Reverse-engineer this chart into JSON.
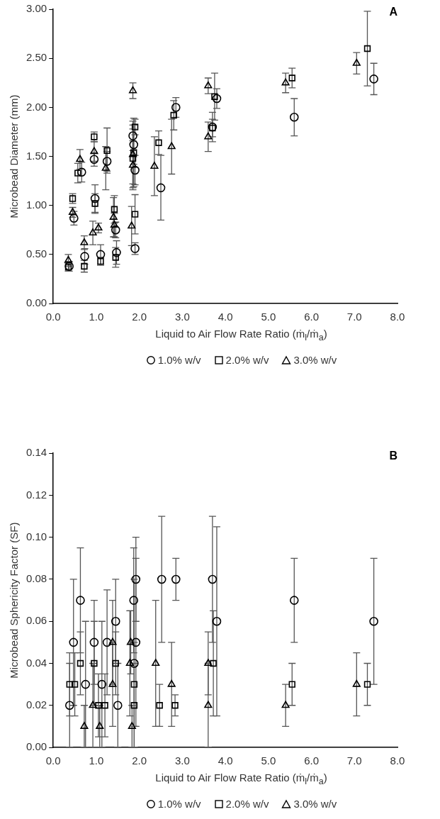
{
  "chart_data": [
    {
      "type": "scatter",
      "title": "A",
      "xlabel": "Liquid to Air Flow Rate Ratio (ṁ$_{l}$/ṁ$_{a}$)",
      "ylabel": "Microbead Diameter (mm)",
      "xlim": [
        0,
        8
      ],
      "xticks": [
        {
          "value": 0,
          "label": "0.0"
        },
        {
          "value": 1,
          "label": "1.0"
        },
        {
          "value": 2,
          "label": "2.0"
        },
        {
          "value": 3,
          "label": "3.0"
        },
        {
          "value": 4,
          "label": "4.0"
        },
        {
          "value": 5,
          "label": "5.0"
        },
        {
          "value": 6,
          "label": "6.0"
        },
        {
          "value": 7,
          "label": "7.0"
        },
        {
          "value": 8,
          "label": "8.0"
        }
      ],
      "ylim": [
        0,
        3
      ],
      "yticks": [
        {
          "value": 0,
          "label": "0.00"
        },
        {
          "value": 0.5,
          "label": "0.50"
        },
        {
          "value": 1,
          "label": "1.00"
        },
        {
          "value": 1.5,
          "label": "1.50"
        },
        {
          "value": 2,
          "label": "2.00"
        },
        {
          "value": 2.5,
          "label": "2.50"
        },
        {
          "value": 3,
          "label": "3.00"
        }
      ],
      "grid": false,
      "legend": "bottom",
      "series": [
        {
          "name": "1.0% w/v",
          "color": "#000000",
          "marker": "circle",
          "x": [
            0.37,
            0.48,
            0.66,
            0.73,
            0.95,
            0.97,
            1.1,
            1.25,
            1.45,
            1.47,
            1.85,
            1.87,
            1.9,
            1.9,
            2.5,
            2.85,
            3.7,
            3.8,
            5.6,
            7.45
          ],
          "values": [
            0.38,
            0.87,
            1.34,
            0.48,
            1.47,
            1.07,
            0.5,
            1.45,
            0.75,
            0.52,
            1.71,
            1.62,
            1.36,
            0.56,
            1.18,
            2,
            1.8,
            2.09,
            1.9,
            2.29
          ],
          "errors": [
            0.05,
            0.07,
            0.1,
            0.08,
            0.07,
            0.14,
            0.1,
            0.1,
            0.08,
            0.12,
            0.15,
            0.2,
            0.15,
            0.06,
            0.33,
            0.1,
            0.15,
            0.1,
            0.19,
            0.16
          ]
        },
        {
          "name": "2.0% w/v",
          "color": "#000000",
          "marker": "square",
          "x": [
            0.35,
            0.45,
            0.57,
            0.72,
            0.95,
            0.97,
            1.1,
            1.25,
            1.42,
            1.45,
            1.85,
            1.87,
            1.9,
            1.9,
            2.45,
            2.8,
            3.7,
            3.75,
            5.55,
            7.3
          ],
          "values": [
            0.37,
            1.07,
            1.33,
            0.38,
            1.7,
            1.02,
            0.43,
            1.56,
            0.96,
            0.47,
            1.48,
            1.54,
            1.8,
            0.91,
            1.64,
            1.92,
            1.79,
            2.11,
            2.3,
            2.6
          ],
          "errors": [
            0.04,
            0.05,
            0.1,
            0.06,
            0.05,
            0.1,
            0.04,
            0.23,
            0.14,
            0.1,
            0.3,
            0.35,
            0.08,
            0.2,
            0.12,
            0.15,
            0.09,
            0.24,
            0.1,
            0.38
          ]
        },
        {
          "name": "3.0% w/v",
          "color": "#000000",
          "marker": "triangle",
          "x": [
            0.35,
            0.45,
            0.62,
            0.72,
            0.92,
            0.95,
            1.05,
            1.22,
            1.4,
            1.42,
            1.82,
            1.85,
            1.85,
            1.85,
            2.35,
            2.75,
            3.6,
            3.6,
            5.4,
            7.05
          ],
          "values": [
            0.44,
            0.93,
            1.47,
            0.62,
            0.72,
            1.55,
            0.77,
            1.38,
            0.88,
            0.8,
            0.79,
            1.41,
            1.52,
            2.17,
            1.4,
            1.6,
            1.7,
            2.22,
            2.25,
            2.45
          ],
          "errors": [
            0.06,
            0.05,
            0.1,
            0.07,
            0.12,
            0.1,
            0.05,
            0.22,
            0.2,
            0.12,
            0.2,
            0.25,
            0.3,
            0.08,
            0.3,
            0.28,
            0.15,
            0.08,
            0.1,
            0.11
          ]
        }
      ]
    },
    {
      "type": "scatter",
      "title": "B",
      "xlabel": "Liquid to Air Flow Rate Ratio (ṁ$_{l}$/ṁ$_{a}$)",
      "ylabel": "Microbead Sphericity Factor (SF)",
      "xlim": [
        0,
        8
      ],
      "xticks": [
        {
          "value": 0,
          "label": "0.0"
        },
        {
          "value": 1,
          "label": "1.0"
        },
        {
          "value": 2,
          "label": "2.0"
        },
        {
          "value": 3,
          "label": "3.0"
        },
        {
          "value": 4,
          "label": "4.0"
        },
        {
          "value": 5,
          "label": "5.0"
        },
        {
          "value": 6,
          "label": "6.0"
        },
        {
          "value": 7,
          "label": "7.0"
        },
        {
          "value": 8,
          "label": "8.0"
        }
      ],
      "ylim": [
        0,
        0.14
      ],
      "yticks": [
        {
          "value": 0,
          "label": "0.00"
        },
        {
          "value": 0.02,
          "label": "0.02"
        },
        {
          "value": 0.04,
          "label": "0.04"
        },
        {
          "value": 0.06,
          "label": "0.06"
        },
        {
          "value": 0.08,
          "label": "0.08"
        },
        {
          "value": 0.1,
          "label": "0.10"
        },
        {
          "value": 0.12,
          "label": "0.12"
        },
        {
          "value": 0.14,
          "label": "0.14"
        }
      ],
      "grid": false,
      "legend": "bottom",
      "series": [
        {
          "name": "1.0% w/v",
          "color": "#000000",
          "marker": "circle",
          "x": [
            0.38,
            0.47,
            0.63,
            0.75,
            0.95,
            1.13,
            1.25,
            1.45,
            1.5,
            1.87,
            1.92,
            1.92,
            1.88,
            2.52,
            2.85,
            3.7,
            3.8,
            5.6,
            7.45
          ],
          "values": [
            0.02,
            0.05,
            0.07,
            0.03,
            0.05,
            0.03,
            0.05,
            0.06,
            0.02,
            0.07,
            0.08,
            0.05,
            0.04,
            0.08,
            0.08,
            0.08,
            0.06,
            0.07,
            0.06
          ],
          "errors": [
            0.02,
            0.03,
            0.025,
            0.03,
            0.02,
            0.03,
            0.025,
            0.02,
            0.02,
            0.025,
            0.02,
            0.04,
            0.04,
            0.03,
            0.01,
            0.03,
            0.045,
            0.02,
            0.03
          ]
        },
        {
          "name": "2.0% w/v",
          "color": "#000000",
          "marker": "square",
          "x": [
            0.38,
            0.5,
            0.63,
            0.95,
            1.05,
            1.2,
            1.45,
            1.88,
            1.88,
            2.47,
            2.83,
            3.72,
            5.55,
            7.3
          ],
          "values": [
            0.03,
            0.03,
            0.04,
            0.04,
            0.02,
            0.02,
            0.04,
            0.03,
            0.02,
            0.02,
            0.02,
            0.04,
            0.03,
            0.03
          ],
          "errors": [
            0.015,
            0.015,
            0.015,
            0.02,
            0.015,
            0.015,
            0.015,
            0.02,
            0.02,
            0.01,
            0.005,
            0.025,
            0.01,
            0.01
          ]
        },
        {
          "name": "3.0% w/v",
          "color": "#000000",
          "marker": "triangle",
          "x": [
            0.72,
            0.92,
            1.08,
            1.38,
            1.38,
            1.78,
            1.8,
            1.83,
            2.38,
            2.75,
            3.6,
            3.6,
            5.4,
            7.05
          ],
          "values": [
            0.01,
            0.02,
            0.01,
            0.03,
            0.05,
            0.04,
            0.05,
            0.01,
            0.04,
            0.03,
            0.04,
            0.02,
            0.02,
            0.03
          ],
          "errors": [
            0.01,
            0.02,
            0.01,
            0.02,
            0.02,
            0.025,
            0.015,
            0.01,
            0.03,
            0.02,
            0.015,
            0.02,
            0.01,
            0.015
          ]
        }
      ]
    }
  ]
}
